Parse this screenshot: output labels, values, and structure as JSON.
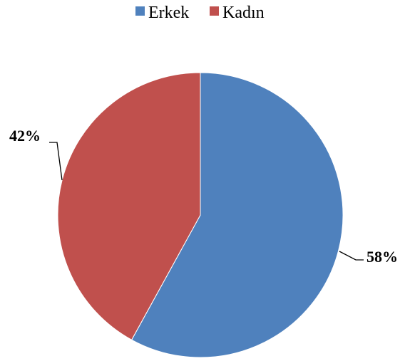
{
  "chart_data": {
    "type": "pie",
    "categories": [
      "Erkek",
      "Kadın"
    ],
    "values": [
      58,
      42
    ],
    "data_labels": [
      "58%",
      "42%"
    ],
    "colors": [
      "#4f81bd",
      "#c0504d"
    ],
    "legend": {
      "position": "top"
    }
  }
}
